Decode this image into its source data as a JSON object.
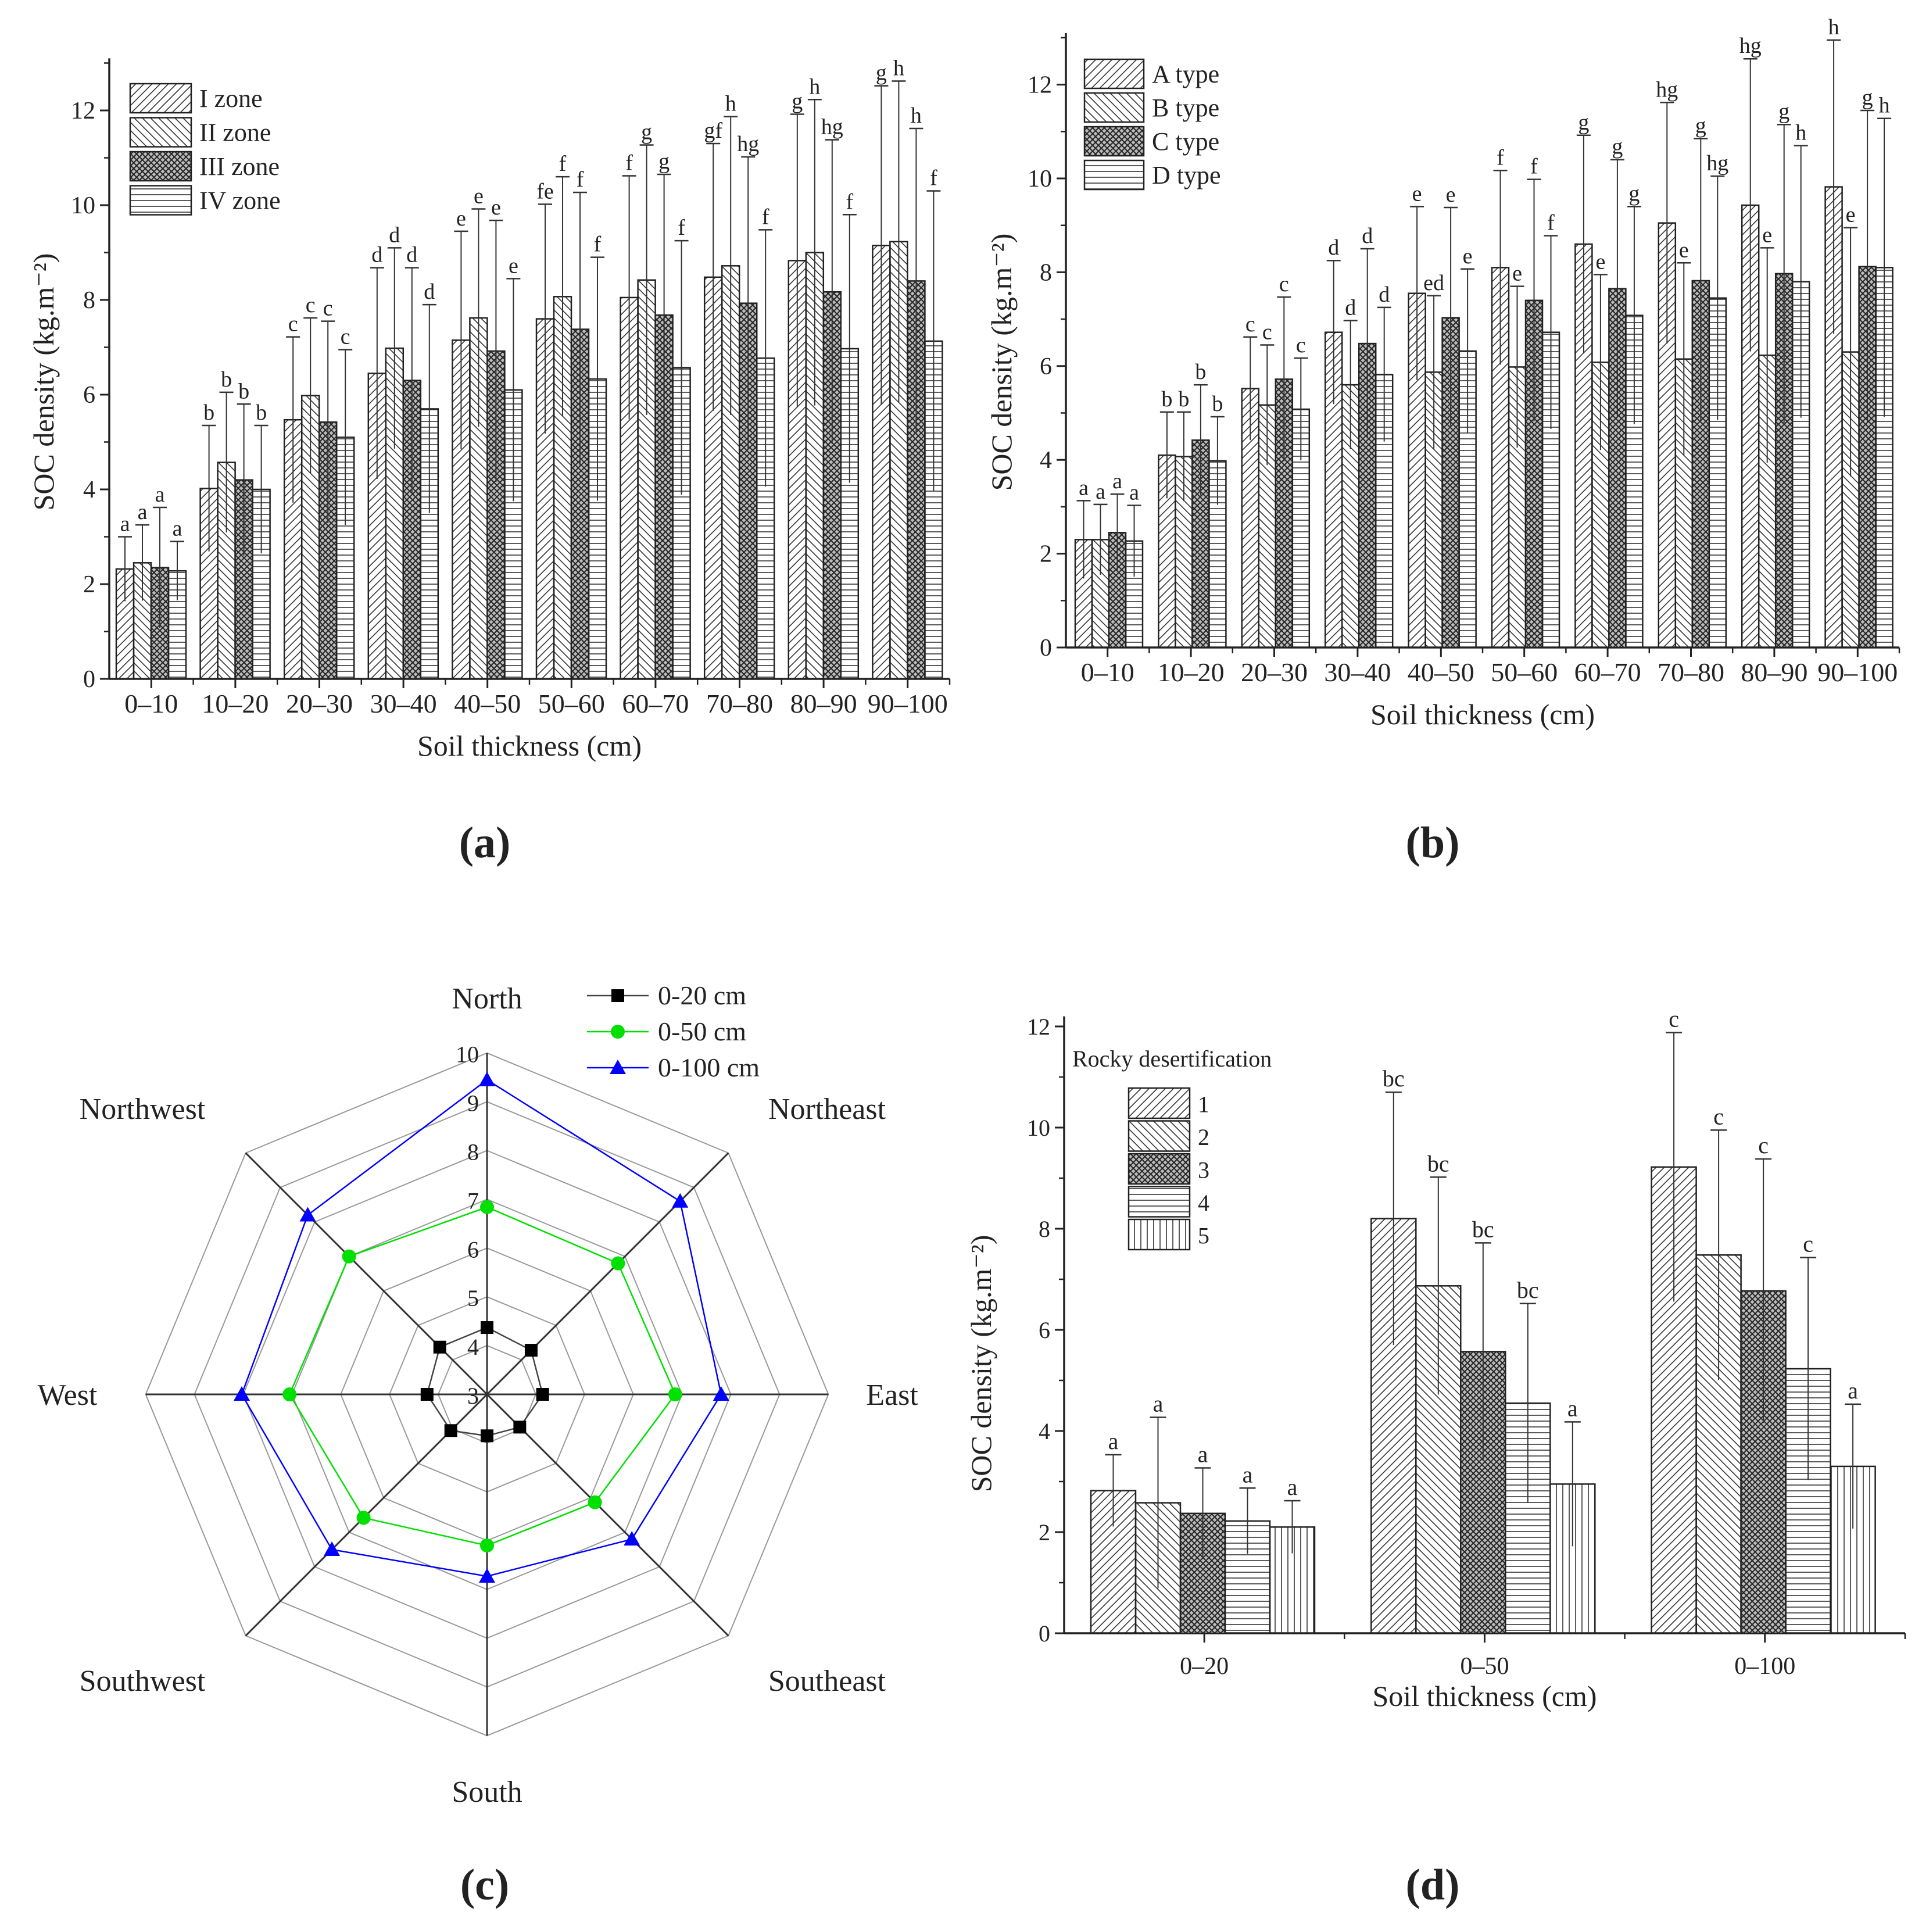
{
  "chart_data": [
    {
      "type": "bar",
      "panel_label": "(a)",
      "xlabel": "Soil thickness (cm)",
      "ylabel": "SOC density (kg.m⁻²)",
      "ylim": [
        0,
        13.1
      ],
      "yticks": [
        0,
        2,
        4,
        6,
        8,
        10,
        12
      ],
      "categories": [
        "0–10",
        "10–20",
        "20–30",
        "30–40",
        "40–50",
        "50–60",
        "60–70",
        "70–80",
        "80–90",
        "90–100"
      ],
      "series": [
        {
          "name": "I zone",
          "values": [
            2.32,
            4.02,
            5.47,
            6.45,
            7.15,
            7.6,
            8.05,
            8.48,
            8.83,
            9.15
          ],
          "error_upper": [
            3.0,
            5.35,
            7.22,
            8.68,
            9.45,
            10.02,
            10.62,
            11.3,
            11.92,
            12.52
          ],
          "letters": [
            "a",
            "b",
            "c",
            "d",
            "e",
            "fe",
            "f",
            "gf",
            "g",
            "g"
          ]
        },
        {
          "name": "II zone",
          "values": [
            2.45,
            4.57,
            5.98,
            6.98,
            7.62,
            8.07,
            8.42,
            8.72,
            9.0,
            9.23
          ],
          "error_upper": [
            3.25,
            6.05,
            7.62,
            9.1,
            9.92,
            10.6,
            11.27,
            11.87,
            12.23,
            12.62
          ],
          "letters": [
            "a",
            "b",
            "c",
            "d",
            "e",
            "f",
            "g",
            "h",
            "h",
            "h"
          ]
        },
        {
          "name": "III zone",
          "values": [
            2.35,
            4.2,
            5.42,
            6.3,
            6.92,
            7.38,
            7.68,
            7.93,
            8.17,
            8.4
          ],
          "error_upper": [
            3.62,
            5.8,
            7.55,
            8.68,
            9.68,
            10.27,
            10.65,
            11.02,
            11.38,
            11.62
          ],
          "letters": [
            "a",
            "b",
            "c",
            "d",
            "e",
            "f",
            "g",
            "hg",
            "hg",
            "h"
          ]
        },
        {
          "name": "IV zone",
          "values": [
            2.28,
            4.0,
            5.1,
            5.7,
            6.1,
            6.33,
            6.57,
            6.77,
            6.97,
            7.13
          ],
          "error_upper": [
            2.9,
            5.35,
            6.95,
            7.9,
            8.45,
            8.9,
            9.25,
            9.48,
            9.8,
            10.3
          ],
          "letters": [
            "a",
            "b",
            "c",
            "d",
            "e",
            "f",
            "f",
            "f",
            "f",
            "f"
          ]
        }
      ]
    },
    {
      "type": "bar",
      "panel_label": "(b)",
      "xlabel": "Soil thickness (cm)",
      "ylabel": "SOC density (kg.m⁻²)",
      "ylim": [
        0,
        13.1
      ],
      "yticks": [
        0,
        2,
        4,
        6,
        8,
        10,
        12
      ],
      "categories": [
        "0–10",
        "10–20",
        "20–30",
        "30–40",
        "40–50",
        "50–60",
        "60–70",
        "70–80",
        "80–90",
        "90–100"
      ],
      "series": [
        {
          "name": "A type",
          "values": [
            2.3,
            4.1,
            5.52,
            6.72,
            7.55,
            8.1,
            8.6,
            9.05,
            9.43,
            9.82
          ],
          "error_upper": [
            3.13,
            5.02,
            6.62,
            8.25,
            9.4,
            10.17,
            10.92,
            11.62,
            12.55,
            12.95
          ],
          "letters": [
            "a",
            "b",
            "c",
            "d",
            "e",
            "f",
            "g",
            "hg",
            "hg",
            "h"
          ]
        },
        {
          "name": "B type",
          "values": [
            2.3,
            4.07,
            5.17,
            5.6,
            5.87,
            5.98,
            6.08,
            6.15,
            6.23,
            6.3
          ],
          "error_upper": [
            3.05,
            5.02,
            6.45,
            6.97,
            7.5,
            7.7,
            7.95,
            8.2,
            8.52,
            8.95
          ],
          "letters": [
            "a",
            "b",
            "c",
            "d",
            "ed",
            "e",
            "e",
            "e",
            "e",
            "e"
          ]
        },
        {
          "name": "C type",
          "values": [
            2.45,
            4.42,
            5.72,
            6.48,
            7.03,
            7.4,
            7.65,
            7.82,
            7.97,
            8.12
          ],
          "error_upper": [
            3.27,
            5.6,
            7.47,
            8.5,
            9.38,
            9.98,
            10.4,
            10.85,
            11.15,
            11.45
          ],
          "letters": [
            "a",
            "b",
            "c",
            "d",
            "e",
            "f",
            "g",
            "g",
            "g",
            "g"
          ]
        },
        {
          "name": "D type",
          "values": [
            2.27,
            3.98,
            5.08,
            5.82,
            6.32,
            6.72,
            7.08,
            7.45,
            7.8,
            8.1
          ],
          "error_upper": [
            3.03,
            4.92,
            6.17,
            7.25,
            8.07,
            8.78,
            9.4,
            10.05,
            10.7,
            11.28
          ],
          "letters": [
            "a",
            "b",
            "c",
            "d",
            "e",
            "f",
            "g",
            "hg",
            "h",
            "h"
          ]
        }
      ]
    },
    {
      "type": "radar",
      "panel_label": "(c)",
      "axes": [
        "North",
        "Northeast",
        "East",
        "Southeast",
        "South",
        "Southwest",
        "West",
        "Northwest"
      ],
      "range": [
        3,
        10
      ],
      "ticks": [
        3,
        4,
        5,
        6,
        7,
        8,
        9,
        10
      ],
      "legend": "top-right",
      "series": [
        {
          "name": "0-20 cm",
          "color": "#000000",
          "marker": "square",
          "values": [
            4.37,
            4.28,
            4.14,
            3.95,
            3.85,
            4.05,
            4.23,
            4.37
          ]
        },
        {
          "name": "0-50 cm",
          "color": "#00e000",
          "marker": "circle",
          "values": [
            6.84,
            6.8,
            6.86,
            6.13,
            6.1,
            6.58,
            7.05,
            7.0
          ]
        },
        {
          "name": "0-100 cm",
          "color": "#0000ff",
          "marker": "triangle",
          "values": [
            9.45,
            8.6,
            7.8,
            7.2,
            6.73,
            7.5,
            8.03,
            8.2
          ]
        }
      ]
    },
    {
      "type": "bar",
      "panel_label": "(d)",
      "xlabel": "Soil thickness (cm)",
      "ylabel": "SOC density (kg.m⁻²)",
      "ylim": [
        0,
        12.2
      ],
      "yticks": [
        0,
        2,
        4,
        6,
        8,
        10,
        12
      ],
      "legend_title": "Rocky desertification",
      "categories": [
        "0–20",
        "0–50",
        "0–100"
      ],
      "series": [
        {
          "name": "1",
          "values": [
            2.82,
            8.2,
            9.22
          ],
          "error_upper": [
            3.53,
            10.7,
            11.88
          ],
          "letters": [
            "a",
            "bc",
            "c"
          ]
        },
        {
          "name": "2",
          "values": [
            2.58,
            6.87,
            7.48
          ],
          "error_upper": [
            4.27,
            9.02,
            9.95
          ],
          "letters": [
            "a",
            "bc",
            "c"
          ]
        },
        {
          "name": "3",
          "values": [
            2.37,
            5.57,
            6.77
          ],
          "error_upper": [
            3.27,
            7.72,
            9.38
          ],
          "letters": [
            "a",
            "bc",
            "c"
          ]
        },
        {
          "name": "4",
          "values": [
            2.22,
            4.55,
            5.23
          ],
          "error_upper": [
            2.87,
            6.52,
            7.43
          ],
          "letters": [
            "a",
            "bc",
            "c"
          ]
        },
        {
          "name": "5",
          "values": [
            2.1,
            2.95,
            3.3
          ],
          "error_upper": [
            2.62,
            4.18,
            4.53
          ],
          "letters": [
            "a",
            "a",
            "a"
          ]
        }
      ]
    }
  ]
}
